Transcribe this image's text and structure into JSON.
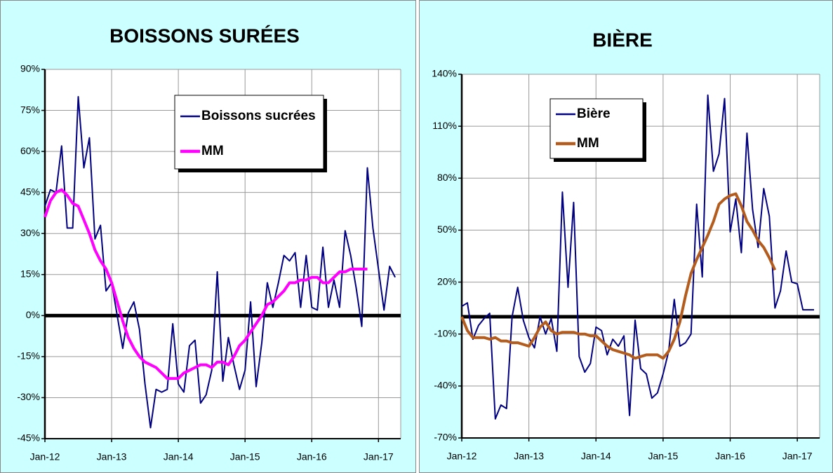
{
  "chart_data": [
    {
      "type": "line",
      "title": "BOISSONS SURÉES",
      "categories": [
        "Jan-12",
        null,
        null,
        null,
        null,
        null,
        null,
        null,
        null,
        null,
        null,
        null,
        "Jan-13",
        null,
        null,
        null,
        null,
        null,
        null,
        null,
        null,
        null,
        null,
        null,
        "Jan-14",
        null,
        null,
        null,
        null,
        null,
        null,
        null,
        null,
        null,
        null,
        null,
        "Jan-15",
        null,
        null,
        null,
        null,
        null,
        null,
        null,
        null,
        null,
        null,
        null,
        "Jan-16",
        null,
        null,
        null,
        null,
        null,
        null,
        null,
        null,
        null,
        null,
        null,
        "Jan-17",
        null,
        null,
        null
      ],
      "series": [
        {
          "name": "Boissons sucrées",
          "color": "#000080",
          "values": [
            40,
            46,
            45,
            62,
            32,
            32,
            80,
            54,
            65,
            28,
            33,
            9,
            12,
            0,
            -12,
            1,
            5,
            -5,
            -25,
            -41,
            -27,
            -28,
            -27,
            -3,
            -25,
            -28,
            -11,
            -9,
            -32,
            -29,
            -20,
            16,
            -24,
            -8,
            -18,
            -27,
            -20,
            5,
            -26,
            -10,
            12,
            3,
            12,
            22,
            20,
            23,
            3,
            22,
            3,
            2,
            25,
            3,
            13,
            3,
            31,
            22,
            10,
            -4,
            54,
            32,
            17,
            2,
            18,
            14
          ]
        },
        {
          "name": "MM",
          "color": "#ff00ff",
          "values": [
            36,
            42,
            45,
            46,
            44,
            41,
            40,
            35,
            30,
            24,
            20,
            17,
            12,
            5,
            -2,
            -8,
            -12,
            -15,
            -17,
            -18,
            -19,
            -21,
            -23,
            -23,
            -23,
            -21,
            -20,
            -19,
            -18,
            -18,
            -19,
            -17,
            -17,
            -18,
            -15,
            -11,
            -9,
            -6,
            -3,
            0,
            4,
            5,
            7,
            9,
            12,
            12,
            13,
            13,
            14,
            14,
            12,
            12,
            14,
            16,
            16,
            17,
            17,
            17,
            17,
            null,
            null,
            null,
            null,
            null
          ]
        }
      ],
      "ylim": [
        -45,
        90
      ],
      "yticks": [
        {
          "value": -45,
          "label": "-45%"
        },
        {
          "value": -30,
          "label": "-30%"
        },
        {
          "value": -15,
          "label": "-15%"
        },
        {
          "value": 0,
          "label": "0%"
        },
        {
          "value": 15,
          "label": "15%"
        },
        {
          "value": 30,
          "label": "30%"
        },
        {
          "value": 45,
          "label": "45%"
        },
        {
          "value": 60,
          "label": "60%"
        },
        {
          "value": 75,
          "label": "75%"
        },
        {
          "value": 90,
          "label": "90%"
        }
      ],
      "grid": true,
      "legend": "upper right"
    },
    {
      "type": "line",
      "title": "BIÈRE",
      "categories": [
        "Jan-12",
        null,
        null,
        null,
        null,
        null,
        null,
        null,
        null,
        null,
        null,
        null,
        "Jan-13",
        null,
        null,
        null,
        null,
        null,
        null,
        null,
        null,
        null,
        null,
        null,
        "Jan-14",
        null,
        null,
        null,
        null,
        null,
        null,
        null,
        null,
        null,
        null,
        null,
        "Jan-15",
        null,
        null,
        null,
        null,
        null,
        null,
        null,
        null,
        null,
        null,
        null,
        "Jan-16",
        null,
        null,
        null,
        null,
        null,
        null,
        null,
        null,
        null,
        null,
        null,
        "Jan-17",
        null,
        null,
        null
      ],
      "series": [
        {
          "name": "Bière",
          "color": "#000080",
          "values": [
            6,
            8,
            -13,
            -5,
            -1,
            2,
            -59,
            -51,
            -53,
            0,
            17,
            -2,
            -12,
            -18,
            0,
            -10,
            -1,
            -20,
            72,
            17,
            66,
            -23,
            -32,
            -27,
            -6,
            -8,
            -22,
            -13,
            -17,
            -11,
            -57,
            -2,
            -30,
            -33,
            -47,
            -44,
            -33,
            -20,
            10,
            -17,
            -15,
            -10,
            65,
            23,
            128,
            84,
            94,
            126,
            49,
            68,
            37,
            106,
            62,
            40,
            74,
            58,
            5,
            15,
            38,
            20,
            19,
            4,
            4,
            4
          ]
        },
        {
          "name": "MM",
          "color": "#b35c1e",
          "values": [
            0,
            -8,
            -12,
            -12,
            -12,
            -13,
            -12,
            -14,
            -14,
            -15,
            -15,
            -16,
            -17,
            -12,
            -6,
            -3,
            -8,
            -10,
            -9,
            -9,
            -9,
            -10,
            -10,
            -11,
            -11,
            -14,
            -17,
            -19,
            -20,
            -21,
            -22,
            -24,
            -23,
            -22,
            -22,
            -22,
            -24,
            -20,
            -13,
            -3,
            12,
            25,
            33,
            40,
            47,
            55,
            65,
            68,
            70,
            71,
            64,
            55,
            50,
            44,
            40,
            34,
            27,
            null,
            null,
            null,
            null,
            null,
            null,
            null
          ]
        }
      ],
      "ylim": [
        -70,
        140
      ],
      "yticks": [
        {
          "value": -70,
          "label": "-70%"
        },
        {
          "value": -40,
          "label": "-40%"
        },
        {
          "value": -10,
          "label": "-10%"
        },
        {
          "value": 20,
          "label": "20%"
        },
        {
          "value": 50,
          "label": "50%"
        },
        {
          "value": 80,
          "label": "80%"
        },
        {
          "value": 110,
          "label": "110%"
        },
        {
          "value": 140,
          "label": "140%"
        }
      ],
      "grid": true,
      "legend": "upper left"
    }
  ]
}
